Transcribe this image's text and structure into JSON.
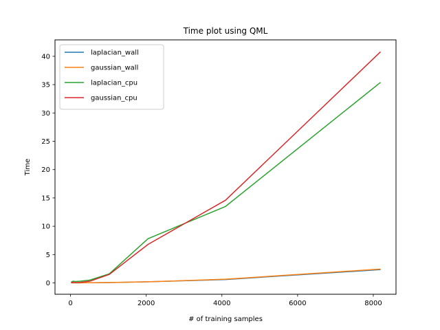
{
  "chart_data": {
    "type": "line",
    "title": "Time plot using QML",
    "xlabel": "# of training samples",
    "ylabel": "Time",
    "xlim": [
      -410,
      8600
    ],
    "ylim": [
      -2.0,
      42.9
    ],
    "xticks": [
      0,
      2000,
      4000,
      6000,
      8000
    ],
    "yticks": [
      0,
      5,
      10,
      15,
      20,
      25,
      30,
      35,
      40
    ],
    "grid": false,
    "legend": "top-left",
    "series": [
      {
        "name": "laplacian_wall",
        "color": "#1f77b4",
        "x": [
          16,
          32,
          64,
          128,
          256,
          512,
          1024,
          2048,
          4096,
          8192
        ],
        "y": [
          0.02,
          0.02,
          0.02,
          0.02,
          0.02,
          0.03,
          0.06,
          0.2,
          0.6,
          2.35
        ]
      },
      {
        "name": "gaussian_wall",
        "color": "#ff7f0e",
        "x": [
          16,
          32,
          64,
          128,
          256,
          512,
          1024,
          2048,
          4096,
          8192
        ],
        "y": [
          0.02,
          0.02,
          0.02,
          0.02,
          0.02,
          0.03,
          0.06,
          0.2,
          0.65,
          2.45
        ]
      },
      {
        "name": "laplacian_cpu",
        "color": "#2ca02c",
        "x": [
          16,
          32,
          64,
          128,
          256,
          512,
          1024,
          2048,
          4096,
          8192
        ],
        "y": [
          0.1,
          0.2,
          0.3,
          0.25,
          0.3,
          0.5,
          1.6,
          7.8,
          13.5,
          35.4
        ]
      },
      {
        "name": "gaussian_cpu",
        "color": "#d62728",
        "x": [
          16,
          32,
          64,
          128,
          256,
          512,
          1024,
          2048,
          4096,
          8192
        ],
        "y": [
          0.05,
          0.08,
          0.1,
          0.05,
          0.1,
          0.3,
          1.5,
          6.8,
          14.6,
          40.8
        ]
      }
    ]
  }
}
